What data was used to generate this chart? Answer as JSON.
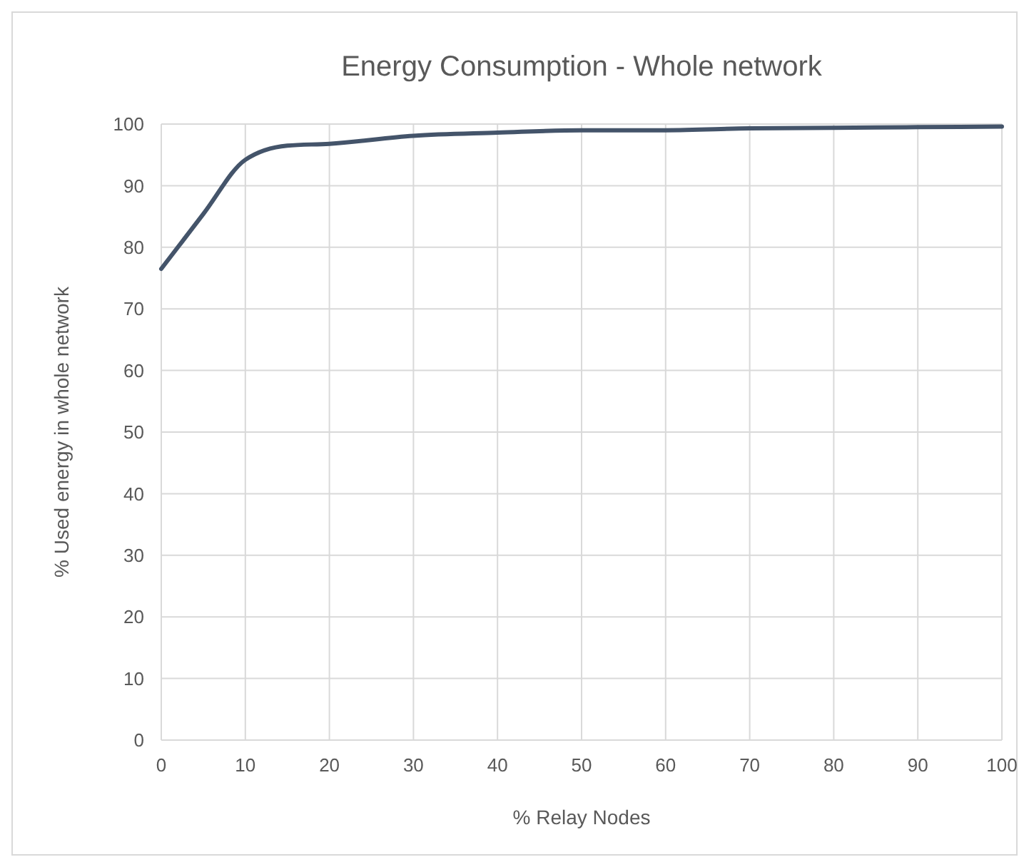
{
  "chart_data": {
    "type": "line",
    "title": "Energy Consumption - Whole network",
    "xlabel": "% Relay Nodes",
    "ylabel": "% Used energy in whole network",
    "x": [
      0,
      5,
      10,
      15,
      20,
      30,
      40,
      50,
      60,
      70,
      80,
      90,
      100
    ],
    "series": [
      {
        "color": "#44546a",
        "values": [
          76.5,
          85.4,
          94.2,
          96.5,
          96.8,
          98.1,
          98.6,
          99.0,
          99.0,
          99.3,
          99.4,
          99.5,
          99.6
        ]
      }
    ],
    "xlim": [
      0,
      100
    ],
    "xticks": [
      0,
      10,
      20,
      30,
      40,
      50,
      60,
      70,
      80,
      90,
      100
    ],
    "ylim": [
      0,
      100
    ],
    "yticks": [
      0,
      10,
      20,
      30,
      40,
      50,
      60,
      70,
      80,
      90,
      100
    ],
    "grid": true,
    "marker": "none",
    "line_style": "solid"
  }
}
